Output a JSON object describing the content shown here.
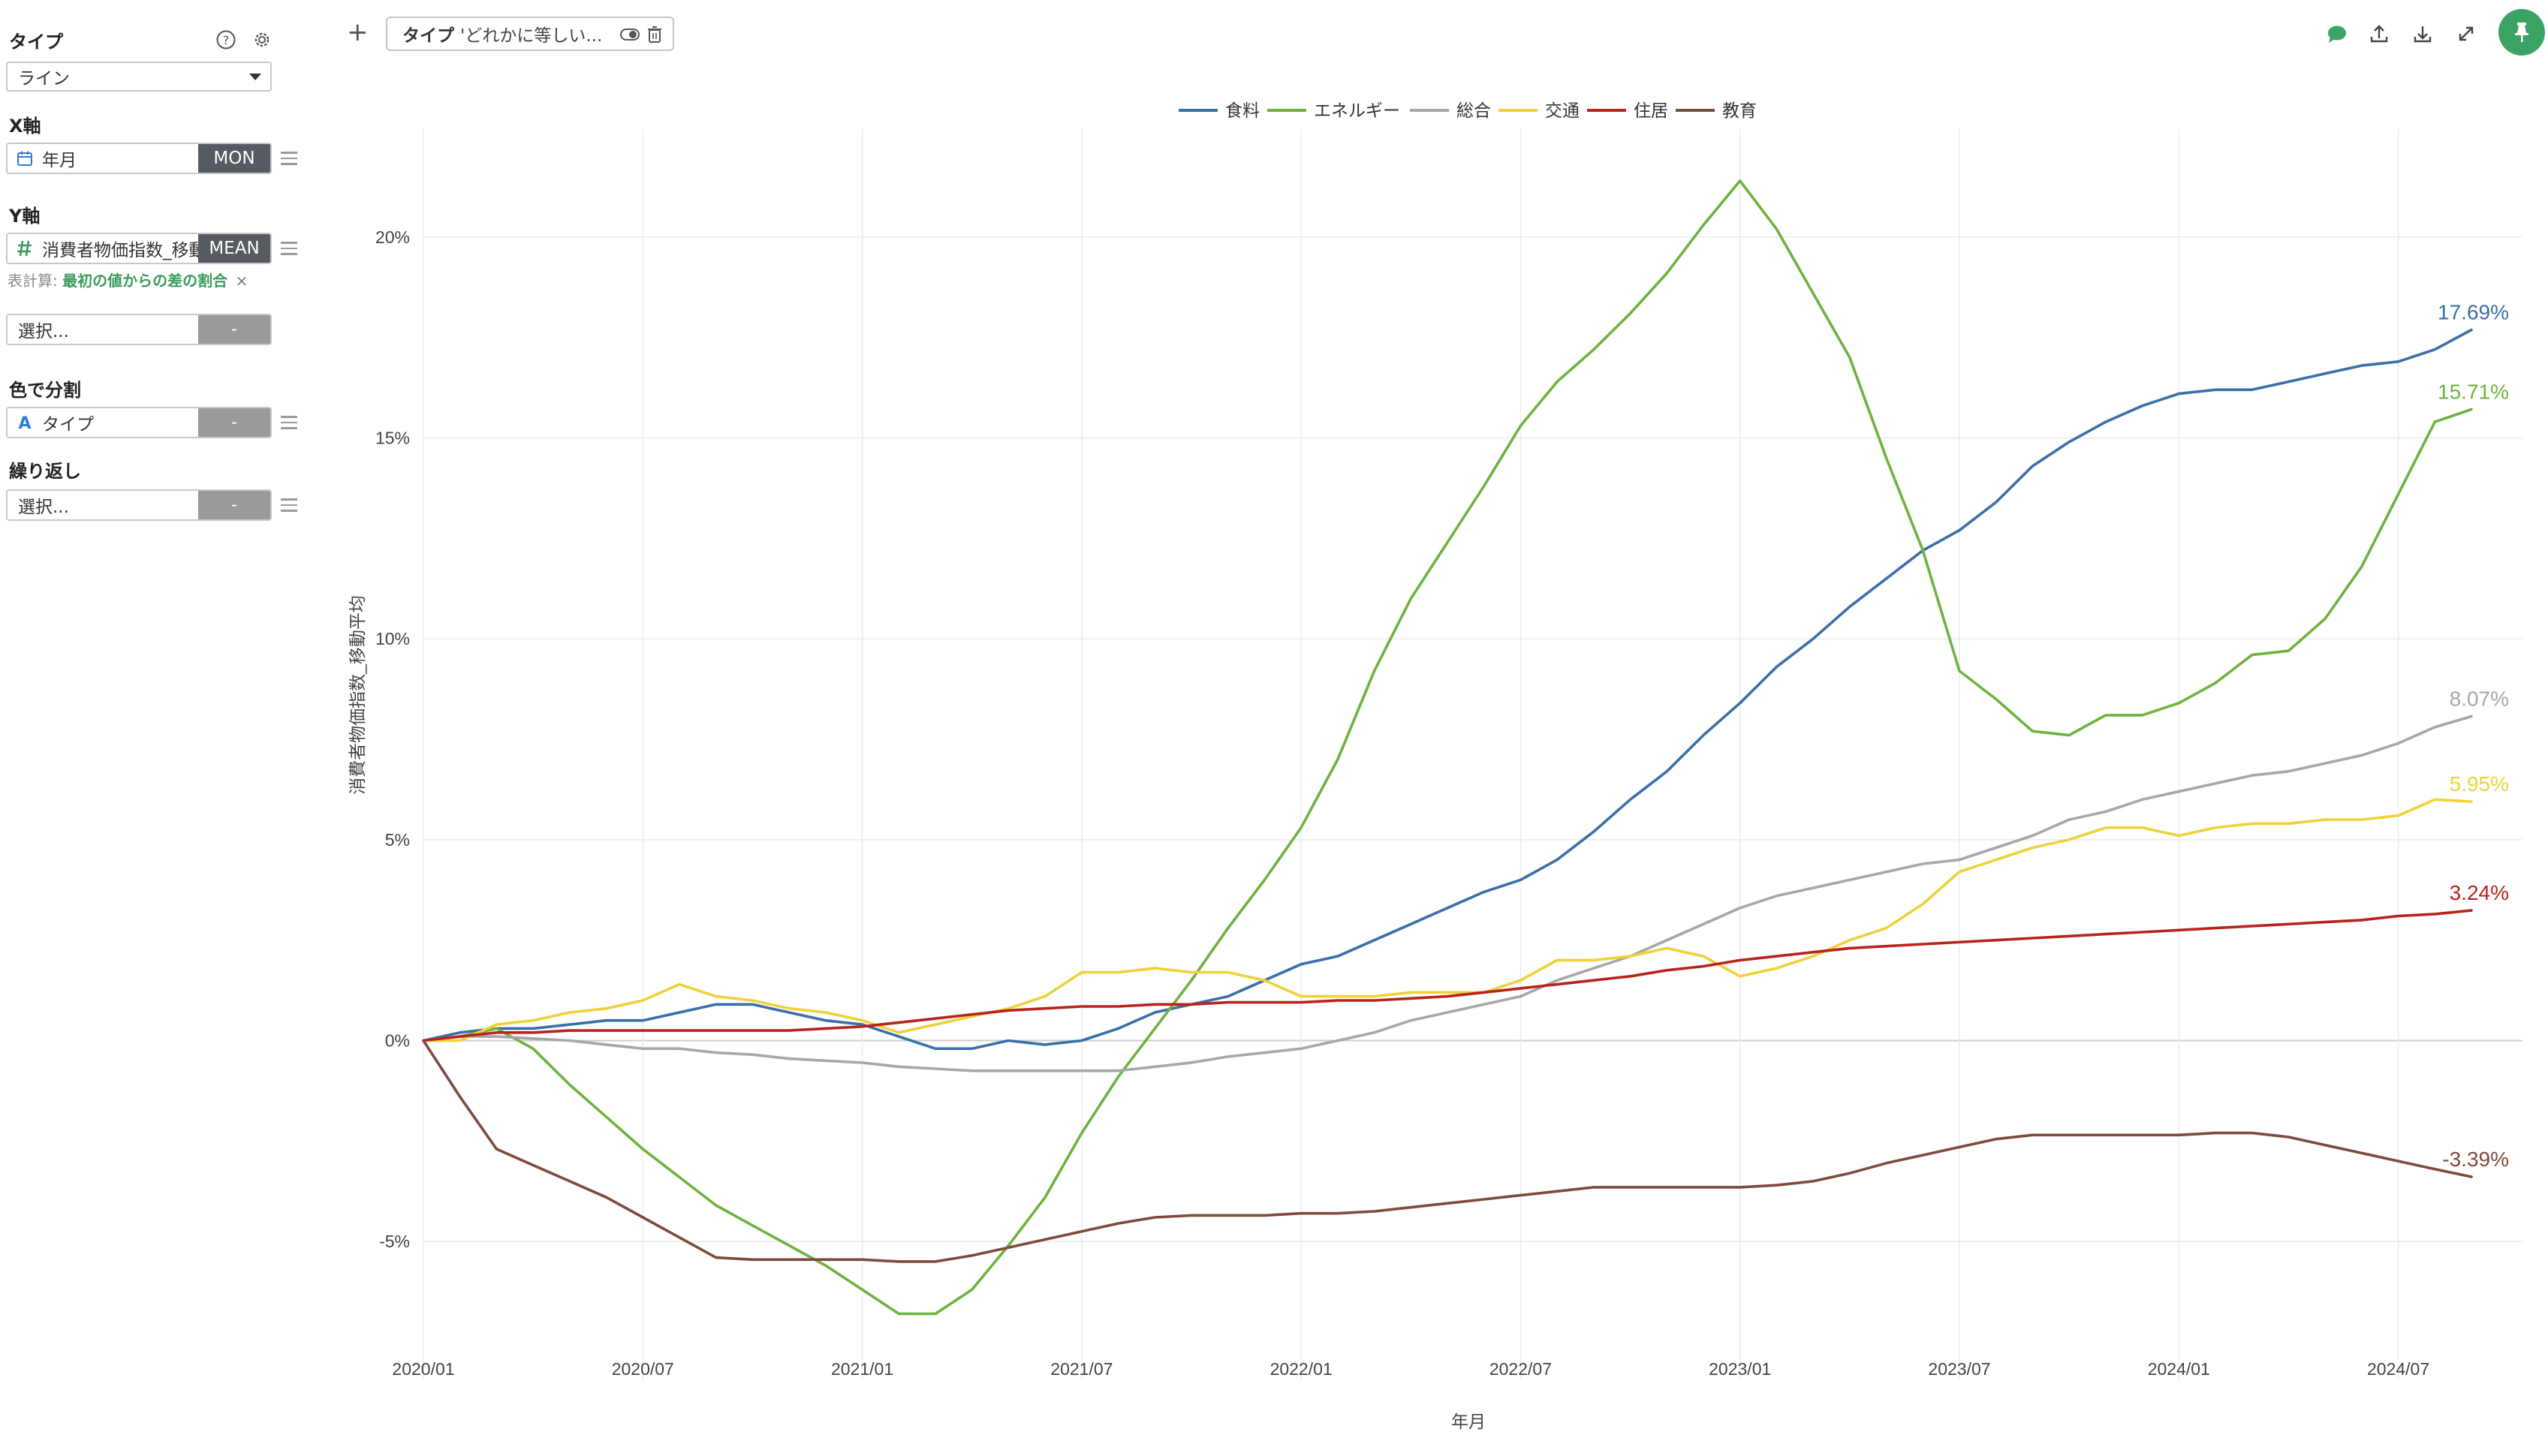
{
  "sidebar": {
    "type_label": "タイプ",
    "type_value": "ライン",
    "x_label": "X軸",
    "x_field": "年月",
    "x_agg": "MON",
    "y_label": "Y軸",
    "y_field": "消費者物価指数_移動平均",
    "y_agg": "MEAN",
    "calc_key": "表計算:",
    "calc_value": "最初の値からの差の割合",
    "calc_remove": "×",
    "extra_placeholder": "選択...",
    "extra_agg": "-",
    "color_label": "色で分割",
    "color_field": "タイプ",
    "color_agg": "-",
    "repeat_label": "繰り返し",
    "repeat_placeholder": "選択...",
    "repeat_agg": "-"
  },
  "toolbar": {
    "plus": "+",
    "filter_name": "タイプ",
    "filter_value": "'どれかに等しい...",
    "icons": [
      "comment-icon",
      "export-icon",
      "download-icon",
      "fullscreen-icon",
      "pin-icon"
    ],
    "accent_color": "#3ba364"
  },
  "chart_data": {
    "type": "line",
    "title": "",
    "xlabel": "年月",
    "ylabel": "消費者物価指数_移動平均",
    "x_ticks": [
      "2020/01",
      "2020/07",
      "2021/01",
      "2021/07",
      "2022/01",
      "2022/07",
      "2023/01",
      "2023/07",
      "2024/01",
      "2024/07"
    ],
    "y_ticks": [
      "-5%",
      "0%",
      "5%",
      "10%",
      "15%",
      "20%"
    ],
    "ylim": [
      -7.5,
      22.5
    ],
    "x_range": [
      "2020/01",
      "2024/09"
    ],
    "grid": true,
    "legend_position": "top-center",
    "x_months": [
      "2020/01",
      "2020/02",
      "2020/03",
      "2020/04",
      "2020/05",
      "2020/06",
      "2020/07",
      "2020/08",
      "2020/09",
      "2020/10",
      "2020/11",
      "2020/12",
      "2021/01",
      "2021/02",
      "2021/03",
      "2021/04",
      "2021/05",
      "2021/06",
      "2021/07",
      "2021/08",
      "2021/09",
      "2021/10",
      "2021/11",
      "2021/12",
      "2022/01",
      "2022/02",
      "2022/03",
      "2022/04",
      "2022/05",
      "2022/06",
      "2022/07",
      "2022/08",
      "2022/09",
      "2022/10",
      "2022/11",
      "2022/12",
      "2023/01",
      "2023/02",
      "2023/03",
      "2023/04",
      "2023/05",
      "2023/06",
      "2023/07",
      "2023/08",
      "2023/09",
      "2023/10",
      "2023/11",
      "2023/12",
      "2024/01",
      "2024/02",
      "2024/03",
      "2024/04",
      "2024/05",
      "2024/06",
      "2024/07",
      "2024/08",
      "2024/09"
    ],
    "series": [
      {
        "name": "食料",
        "color": "#3a6fa8",
        "end_label": "17.69%",
        "values": [
          0,
          0.2,
          0.3,
          0.3,
          0.4,
          0.5,
          0.5,
          0.7,
          0.9,
          0.9,
          0.7,
          0.5,
          0.4,
          0.1,
          -0.2,
          -0.2,
          0,
          -0.1,
          0,
          0.3,
          0.7,
          0.9,
          1.1,
          1.5,
          1.9,
          2.1,
          2.5,
          2.9,
          3.3,
          3.7,
          4.0,
          4.5,
          5.2,
          6.0,
          6.7,
          7.6,
          8.4,
          9.3,
          10.0,
          10.8,
          11.5,
          12.2,
          12.7,
          13.4,
          14.3,
          14.9,
          15.4,
          15.8,
          16.1,
          16.2,
          16.2,
          16.4,
          16.6,
          16.8,
          16.9,
          17.2,
          17.69
        ]
      },
      {
        "name": "エネルギー",
        "color": "#6db33f",
        "end_label": "15.71%",
        "values": [
          0,
          0.1,
          0.3,
          -0.2,
          -1.1,
          -1.9,
          -2.7,
          -3.4,
          -4.1,
          -4.6,
          -5.1,
          -5.6,
          -6.2,
          -6.8,
          -6.8,
          -6.2,
          -5.1,
          -3.9,
          -2.3,
          -0.9,
          0.3,
          1.5,
          2.8,
          4.0,
          5.3,
          7.0,
          9.2,
          11.0,
          12.4,
          13.8,
          15.3,
          16.4,
          17.2,
          18.1,
          19.1,
          20.3,
          21.4,
          20.2,
          18.6,
          17.0,
          14.5,
          12.2,
          9.2,
          8.5,
          7.7,
          7.6,
          8.1,
          8.1,
          8.4,
          8.9,
          9.6,
          9.7,
          10.5,
          11.8,
          13.6,
          15.4,
          15.71
        ]
      },
      {
        "name": "総合",
        "color": "#a7a7a7",
        "end_label": "8.07%",
        "values": [
          0,
          0.1,
          0.1,
          0.05,
          0,
          -0.1,
          -0.2,
          -0.2,
          -0.3,
          -0.35,
          -0.45,
          -0.5,
          -0.55,
          -0.65,
          -0.7,
          -0.75,
          -0.75,
          -0.75,
          -0.75,
          -0.75,
          -0.65,
          -0.55,
          -0.4,
          -0.3,
          -0.2,
          0,
          0.2,
          0.5,
          0.7,
          0.9,
          1.1,
          1.5,
          1.8,
          2.1,
          2.5,
          2.9,
          3.3,
          3.6,
          3.8,
          4.0,
          4.2,
          4.4,
          4.5,
          4.8,
          5.1,
          5.5,
          5.7,
          6.0,
          6.2,
          6.4,
          6.6,
          6.7,
          6.9,
          7.1,
          7.4,
          7.8,
          8.07
        ]
      },
      {
        "name": "交通",
        "color": "#efd23a",
        "end_label": "5.95%",
        "values": [
          0,
          0,
          0.4,
          0.5,
          0.7,
          0.8,
          1.0,
          1.4,
          1.1,
          1.0,
          0.8,
          0.7,
          0.5,
          0.2,
          0.4,
          0.6,
          0.8,
          1.1,
          1.7,
          1.7,
          1.8,
          1.7,
          1.7,
          1.5,
          1.1,
          1.1,
          1.1,
          1.2,
          1.2,
          1.2,
          1.5,
          2.0,
          2.0,
          2.1,
          2.3,
          2.1,
          1.6,
          1.8,
          2.1,
          2.5,
          2.8,
          3.4,
          4.2,
          4.5,
          4.8,
          5.0,
          5.3,
          5.3,
          5.1,
          5.3,
          5.4,
          5.4,
          5.5,
          5.5,
          5.6,
          6.0,
          5.95
        ]
      },
      {
        "name": "住居",
        "color": "#b8241c",
        "end_label": "3.24%",
        "values": [
          0,
          0.1,
          0.2,
          0.2,
          0.25,
          0.25,
          0.25,
          0.25,
          0.25,
          0.25,
          0.25,
          0.3,
          0.35,
          0.45,
          0.55,
          0.65,
          0.75,
          0.8,
          0.85,
          0.85,
          0.9,
          0.9,
          0.95,
          0.95,
          0.95,
          1.0,
          1.0,
          1.05,
          1.1,
          1.2,
          1.3,
          1.4,
          1.5,
          1.6,
          1.75,
          1.85,
          2.0,
          2.1,
          2.2,
          2.3,
          2.35,
          2.4,
          2.45,
          2.5,
          2.55,
          2.6,
          2.65,
          2.7,
          2.75,
          2.8,
          2.85,
          2.9,
          2.95,
          3.0,
          3.1,
          3.15,
          3.24
        ]
      },
      {
        "name": "教育",
        "color": "#7d4a3c",
        "end_label": "-3.39%",
        "values": [
          0,
          -1.4,
          -2.7,
          -3.1,
          -3.5,
          -3.9,
          -4.4,
          -4.9,
          -5.4,
          -5.45,
          -5.45,
          -5.45,
          -5.45,
          -5.5,
          -5.5,
          -5.35,
          -5.15,
          -4.95,
          -4.75,
          -4.55,
          -4.4,
          -4.35,
          -4.35,
          -4.35,
          -4.3,
          -4.3,
          -4.25,
          -4.15,
          -4.05,
          -3.95,
          -3.85,
          -3.75,
          -3.65,
          -3.65,
          -3.65,
          -3.65,
          -3.65,
          -3.6,
          -3.5,
          -3.3,
          -3.05,
          -2.85,
          -2.65,
          -2.45,
          -2.35,
          -2.35,
          -2.35,
          -2.35,
          -2.35,
          -2.3,
          -2.3,
          -2.4,
          -2.6,
          -2.8,
          -3.0,
          -3.2,
          -3.39
        ]
      }
    ]
  }
}
